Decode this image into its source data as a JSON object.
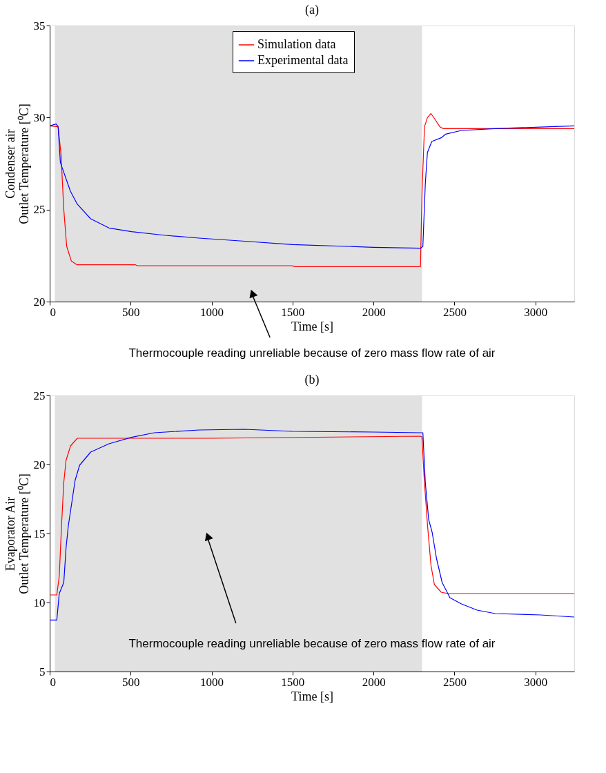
{
  "chart_data": [
    {
      "type": "line",
      "title": "(a)",
      "xlabel": "Time [s]",
      "ylabel": "Condenser air\nOutlet Temperature [⁰C]",
      "xlim": [
        0,
        3240
      ],
      "xticks": [
        0,
        500,
        1000,
        1500,
        2000,
        2500,
        3000
      ],
      "ylim": [
        20,
        35
      ],
      "yticks": [
        20,
        25,
        30,
        35
      ],
      "grid": false,
      "legend": "top",
      "line_style": "solid",
      "marker": "none",
      "series": [
        {
          "name": "Simulation data",
          "color": "#ff0000",
          "x": [
            0,
            52,
            70,
            87,
            105,
            134,
            169,
            530,
            540,
            1500,
            1510,
            2290,
            2300,
            2315,
            2333,
            2355,
            2380,
            2410,
            2430,
            3240
          ],
          "values": [
            29.55,
            29.5,
            28.0,
            25.0,
            23.0,
            22.2,
            22.0,
            22.0,
            21.95,
            21.95,
            21.9,
            21.9,
            26.0,
            29.5,
            30.0,
            30.22,
            29.9,
            29.5,
            29.4,
            29.4
          ]
        },
        {
          "name": "Experimental data",
          "color": "#0000ff",
          "x": [
            0,
            40,
            52,
            66,
            128,
            170,
            253,
            366,
            505,
            714,
            923,
            1174,
            1500,
            2000,
            2290,
            2305,
            2320,
            2333,
            2360,
            2418,
            2446,
            2543,
            2752,
            3240
          ],
          "values": [
            29.55,
            29.65,
            29.5,
            27.55,
            26.0,
            25.3,
            24.5,
            24.0,
            23.8,
            23.6,
            23.45,
            23.3,
            23.1,
            22.95,
            22.9,
            23.0,
            26.4,
            28.1,
            28.7,
            28.9,
            29.1,
            29.3,
            29.4,
            29.55
          ]
        }
      ],
      "bands": [
        {
          "axis": "x",
          "from": 32,
          "to": 2300,
          "color": "#d4d4d4"
        }
      ],
      "annotations": [
        "Thermocouple reading unreliable because of zero mass  flow rate of air"
      ]
    },
    {
      "type": "line",
      "title": "(b)",
      "xlabel": "Time [s]",
      "ylabel": "Evaporator Air\nOutlet Temperature [⁰C]",
      "xlim": [
        0,
        3240
      ],
      "xticks": [
        0,
        500,
        1000,
        1500,
        2000,
        2500,
        3000
      ],
      "ylim": [
        5,
        25
      ],
      "yticks": [
        5,
        10,
        15,
        20,
        25
      ],
      "grid": false,
      "line_style": "solid",
      "marker": "none",
      "series": [
        {
          "color": "#ff0000",
          "x": [
            0,
            44,
            59,
            73,
            87,
            101,
            129,
            171,
            1000,
            2290,
            2299,
            2313,
            2334,
            2355,
            2376,
            2418,
            2460,
            3240
          ],
          "values": [
            10.55,
            10.55,
            11.9,
            15.55,
            18.7,
            20.3,
            21.35,
            21.9,
            21.9,
            22.05,
            22.0,
            19.0,
            15.55,
            12.7,
            11.3,
            10.75,
            10.65,
            10.65
          ]
        },
        {
          "color": "#0000ff",
          "x": [
            0,
            44,
            59,
            87,
            101,
            115,
            157,
            185,
            253,
            366,
            505,
            646,
            923,
            1203,
            1500,
            2000,
            2290,
            2305,
            2320,
            2341,
            2362,
            2389,
            2424,
            2472,
            2543,
            2640,
            2752,
            3032,
            3240
          ],
          "values": [
            8.73,
            8.73,
            10.65,
            11.45,
            13.95,
            15.55,
            18.85,
            19.95,
            20.9,
            21.5,
            21.97,
            22.3,
            22.5,
            22.55,
            22.4,
            22.35,
            22.3,
            22.3,
            18.7,
            16.0,
            15.1,
            13.2,
            11.45,
            10.35,
            9.9,
            9.45,
            9.2,
            9.1,
            8.95
          ]
        }
      ],
      "bands": [
        {
          "axis": "x",
          "from": 32,
          "to": 2300,
          "color": "#d4d4d4"
        }
      ],
      "annotations": [
        "Thermocouple reading unreliable because of zero mass  flow rate of air"
      ]
    }
  ]
}
